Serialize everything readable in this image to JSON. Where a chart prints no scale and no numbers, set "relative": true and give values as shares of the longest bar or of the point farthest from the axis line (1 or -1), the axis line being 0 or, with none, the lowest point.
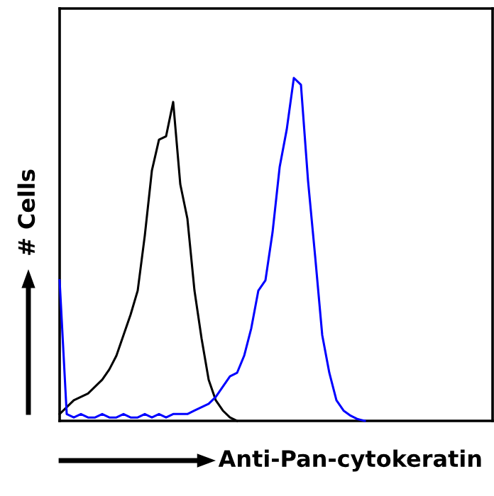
{
  "chart_data": {
    "type": "line",
    "relative": true,
    "xlabel": "Anti-Pan-cytokeratin",
    "ylabel": "# Cells",
    "categories": [
      null,
      null,
      null,
      null,
      null,
      null,
      null,
      null,
      null,
      null,
      null,
      null,
      null,
      null,
      null,
      null,
      null,
      null,
      null,
      null,
      null,
      null,
      null,
      null,
      null,
      null,
      null,
      null,
      null,
      null,
      null,
      null,
      null,
      null,
      null,
      null,
      null,
      null,
      null,
      null,
      null,
      null,
      null,
      null,
      null,
      null,
      null,
      null,
      null,
      null,
      null,
      null,
      null,
      null,
      null,
      null,
      null,
      null,
      null,
      null,
      null,
      null
    ],
    "series": [
      {
        "color": "#000000",
        "values": [
          0.02,
          0.04,
          0.06,
          0.07,
          0.08,
          0.1,
          0.12,
          0.15,
          0.19,
          0.25,
          0.31,
          0.38,
          0.54,
          0.73,
          0.82,
          0.83,
          0.93,
          0.69,
          0.59,
          0.38,
          0.24,
          0.12,
          0.06,
          0.03,
          0.01,
          0,
          null,
          null,
          null,
          null,
          null,
          null,
          null,
          null,
          null,
          null,
          null,
          null,
          null,
          null,
          null,
          null,
          null,
          null,
          null,
          null,
          null,
          null,
          null,
          null,
          null,
          null,
          null,
          null,
          null,
          null,
          null,
          null,
          null,
          null,
          null,
          null
        ]
      },
      {
        "color": "#0000ff",
        "values": [
          0.41,
          0.02,
          0.01,
          0.02,
          0.01,
          0.01,
          0.02,
          0.01,
          0.01,
          0.02,
          0.01,
          0.01,
          0.02,
          0.01,
          0.02,
          0.01,
          0.02,
          0.02,
          0.02,
          0.03,
          0.04,
          0.05,
          0.07,
          0.1,
          0.13,
          0.14,
          0.19,
          0.27,
          0.38,
          0.41,
          0.55,
          0.74,
          0.85,
          1.0,
          0.98,
          0.7,
          0.48,
          0.25,
          0.14,
          0.06,
          0.03,
          0.015,
          0.005,
          0,
          null,
          null,
          null,
          null,
          null,
          null,
          null,
          null,
          null,
          null,
          null,
          null,
          null,
          null,
          null,
          null,
          null,
          null
        ]
      }
    ]
  }
}
